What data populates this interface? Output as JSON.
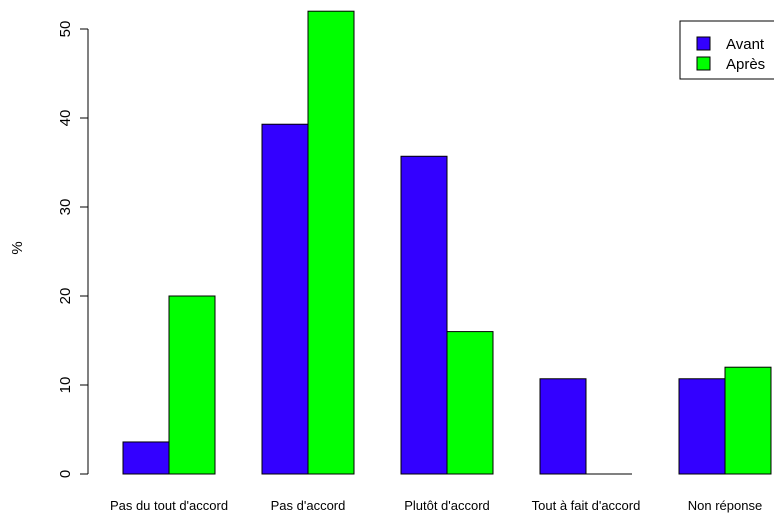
{
  "chart_data": {
    "type": "bar",
    "title": "",
    "xlabel": "",
    "ylabel": "%",
    "ylim": [
      0,
      52
    ],
    "yticks": [
      0,
      10,
      20,
      30,
      40,
      50
    ],
    "categories": [
      "Pas du tout d'accord",
      "Pas d'accord",
      "Plutôt d'accord",
      "Tout à fait d'accord",
      "Non réponse"
    ],
    "series": [
      {
        "name": "Avant",
        "color": "#3300ff",
        "values": [
          3.6,
          39.3,
          35.7,
          10.7,
          10.7
        ]
      },
      {
        "name": "Après",
        "color": "#00ff00",
        "values": [
          20.0,
          52.0,
          16.0,
          0.0,
          12.0
        ]
      }
    ],
    "legend": {
      "position": "top-right"
    },
    "grid": false
  }
}
